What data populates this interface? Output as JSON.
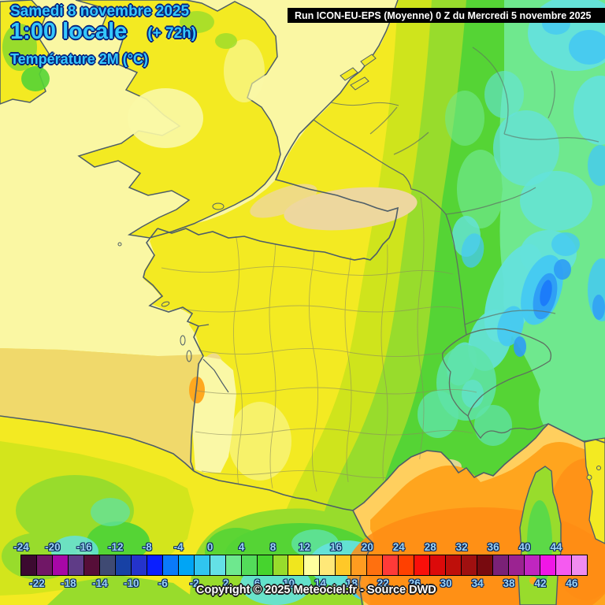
{
  "header": {
    "date": "Samedi 8 novembre 2025",
    "time": "1:00 locale",
    "lead": "(+ 72h)",
    "variable": "Température 2M (°C)"
  },
  "run_bar": {
    "text": "Run ICON-EU-EPS (Moyenne) 0 Z du Mercredi 5 novembre 2025"
  },
  "footer": {
    "copyright": "Copyright © 2025 Meteociel.fr - Source DWD"
  },
  "colors": {
    "header_blue": "#35C8FF",
    "header_outline": "#06247E",
    "run_bg": "#000000",
    "run_fg": "#FFFFFF",
    "scale_label": "#9CD4F6",
    "scale_outline": "#0A2A60",
    "copyright_fg": "#FFFFFF",
    "copyright_outline": "#1E1E1E"
  },
  "colorbar": {
    "unit": "°C",
    "labels_top": [
      "-24",
      "-20",
      "-16",
      "-12",
      "-8",
      "-4",
      "0",
      "4",
      "8",
      "12",
      "16",
      "20",
      "24",
      "28",
      "32",
      "36",
      "40",
      "44"
    ],
    "labels_bottom": [
      "-22",
      "-18",
      "-14",
      "-10",
      "-6",
      "-2",
      "2",
      "6",
      "10",
      "14",
      "18",
      "22",
      "26",
      "30",
      "34",
      "38",
      "42",
      "46"
    ],
    "cells": [
      {
        "from": -24,
        "to": -22,
        "color": "#3C0A30"
      },
      {
        "from": -22,
        "to": -20,
        "color": "#701766"
      },
      {
        "from": -20,
        "to": -18,
        "color": "#A707A7"
      },
      {
        "from": -18,
        "to": -16,
        "color": "#5F3C87"
      },
      {
        "from": -16,
        "to": -14,
        "color": "#560E38"
      },
      {
        "from": -14,
        "to": -12,
        "color": "#3F4A73"
      },
      {
        "from": -12,
        "to": -10,
        "color": "#1741A5"
      },
      {
        "from": -10,
        "to": -8,
        "color": "#2433CC"
      },
      {
        "from": -8,
        "to": -6,
        "color": "#0A1FFF"
      },
      {
        "from": -6,
        "to": -4,
        "color": "#0A7AFA"
      },
      {
        "from": -4,
        "to": -2,
        "color": "#00A5F5"
      },
      {
        "from": -2,
        "to": 0,
        "color": "#30C5F0"
      },
      {
        "from": 0,
        "to": 2,
        "color": "#64E0E6"
      },
      {
        "from": 2,
        "to": 4,
        "color": "#6EE88E"
      },
      {
        "from": 4,
        "to": 6,
        "color": "#53DC5A"
      },
      {
        "from": 6,
        "to": 8,
        "color": "#46D42E"
      },
      {
        "from": 8,
        "to": 10,
        "color": "#98DC2C"
      },
      {
        "from": 10,
        "to": 12,
        "color": "#F0E61E"
      },
      {
        "from": 12,
        "to": 14,
        "color": "#FFFF9E"
      },
      {
        "from": 14,
        "to": 16,
        "color": "#FFE878"
      },
      {
        "from": 16,
        "to": 18,
        "color": "#FFC828"
      },
      {
        "from": 18,
        "to": 20,
        "color": "#FF9C20"
      },
      {
        "from": 20,
        "to": 22,
        "color": "#FF700F"
      },
      {
        "from": 22,
        "to": 24,
        "color": "#FF3A38"
      },
      {
        "from": 24,
        "to": 26,
        "color": "#FF4000"
      },
      {
        "from": 26,
        "to": 28,
        "color": "#FA0F0A"
      },
      {
        "from": 28,
        "to": 30,
        "color": "#DC0A0A"
      },
      {
        "from": 30,
        "to": 32,
        "color": "#BE0F0A"
      },
      {
        "from": 32,
        "to": 34,
        "color": "#A01010"
      },
      {
        "from": 34,
        "to": 36,
        "color": "#780A0F"
      },
      {
        "from": 36,
        "to": 38,
        "color": "#7A2177"
      },
      {
        "from": 38,
        "to": 40,
        "color": "#9B2391"
      },
      {
        "from": 40,
        "to": 42,
        "color": "#C026C0"
      },
      {
        "from": 42,
        "to": 44,
        "color": "#F016E6"
      },
      {
        "from": 44,
        "to": 46,
        "color": "#F55AF0"
      },
      {
        "from": 46,
        "to": 48,
        "color": "#F08CF0"
      }
    ]
  },
  "map": {
    "palette": {
      "base_yellow": "#F3EA22",
      "sea_pale": "#FAF7A3",
      "sea_gold": "#F0D96B",
      "sea_tan": "#EDD79E",
      "land_pale": "#FAF8A6",
      "yellow_green": "#CFE41C",
      "green_mid": "#98DC2C",
      "green": "#55D435",
      "green_light": "#6FE88E",
      "spring": "#5FE3A8",
      "turquoise": "#64E2DC",
      "cyan": "#45C9F2",
      "blue": "#2E9CF5",
      "blue_deep": "#1C7CFA",
      "med_gold": "#FFCF5E",
      "med_orange": "#FFA51E",
      "med_deep": "#FF8C14",
      "spot_orange": "#FFA81E",
      "corsica_green": "#55D84A",
      "coast": "#4D5D68",
      "border": "#5E6E62",
      "dept": "#8A8A60"
    }
  }
}
